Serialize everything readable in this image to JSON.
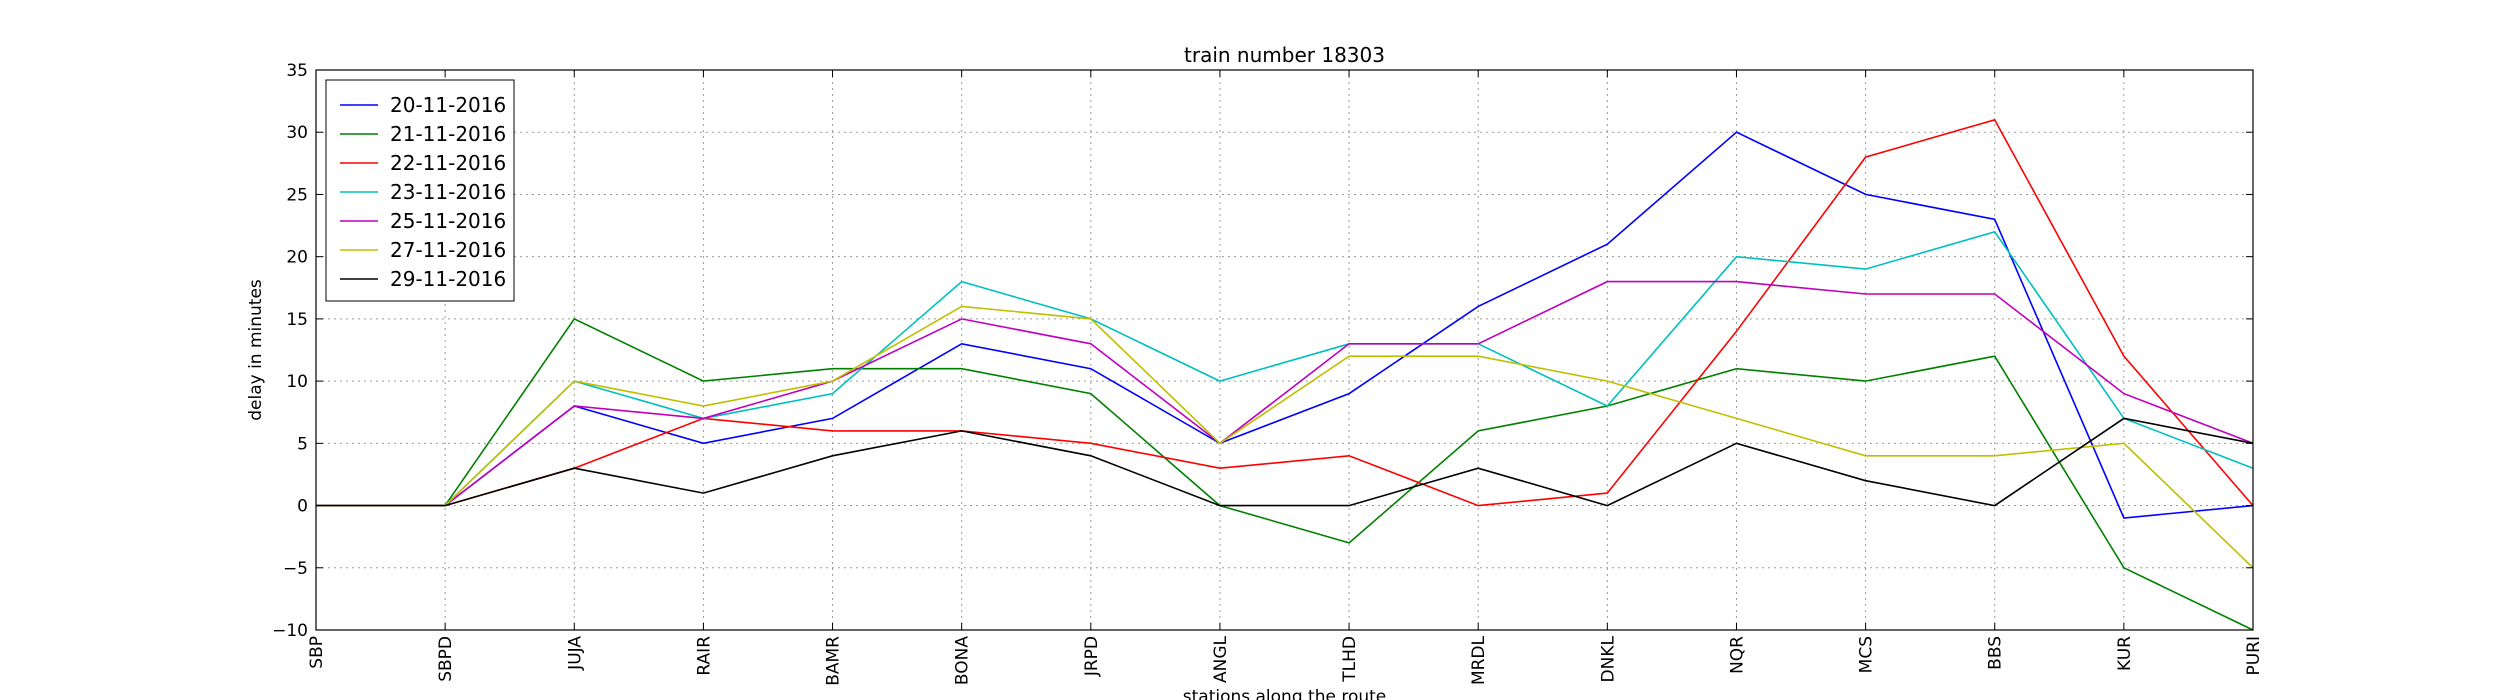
{
  "chart_data": {
    "type": "line",
    "title": "train number 18303",
    "xlabel": "stations along the route",
    "ylabel": "delay in minutes",
    "categories": [
      "SBP",
      "SBPD",
      "JUJA",
      "RAIR",
      "BAMR",
      "BONA",
      "JRPD",
      "ANGL",
      "TLHD",
      "MRDL",
      "DNKL",
      "NQR",
      "MCS",
      "BBS",
      "KUR",
      "PURI"
    ],
    "ylim": [
      -10,
      35
    ],
    "yticks": [
      -10,
      -5,
      0,
      5,
      10,
      15,
      20,
      25,
      30,
      35
    ],
    "grid": true,
    "legend_position": "top-left",
    "series": [
      {
        "name": "20-11-2016",
        "color": "#0000ff",
        "values": [
          0,
          0,
          8,
          5,
          7,
          13,
          11,
          5,
          9,
          16,
          21,
          30,
          25,
          23,
          -1,
          0
        ]
      },
      {
        "name": "21-11-2016",
        "color": "#008000",
        "values": [
          0,
          0,
          15,
          10,
          11,
          11,
          9,
          0,
          -3,
          6,
          8,
          11,
          10,
          12,
          -5,
          -10
        ]
      },
      {
        "name": "22-11-2016",
        "color": "#ff0000",
        "values": [
          0,
          0,
          3,
          7,
          6,
          6,
          5,
          3,
          4,
          0,
          1,
          14,
          28,
          31,
          12,
          0
        ]
      },
      {
        "name": "23-11-2016",
        "color": "#00bfbf",
        "values": [
          0,
          0,
          10,
          7,
          9,
          18,
          15,
          10,
          13,
          13,
          8,
          20,
          19,
          22,
          7,
          3
        ]
      },
      {
        "name": "25-11-2016",
        "color": "#bf00bf",
        "values": [
          0,
          0,
          8,
          7,
          10,
          15,
          13,
          5,
          13,
          13,
          18,
          18,
          17,
          17,
          9,
          5
        ]
      },
      {
        "name": "27-11-2016",
        "color": "#bfbf00",
        "values": [
          0,
          0,
          10,
          8,
          10,
          16,
          15,
          5,
          12,
          12,
          10,
          7,
          4,
          4,
          5,
          -5
        ]
      },
      {
        "name": "29-11-2016",
        "color": "#000000",
        "values": [
          0,
          0,
          3,
          1,
          4,
          6,
          4,
          0,
          0,
          3,
          0,
          5,
          2,
          0,
          7,
          5
        ]
      }
    ]
  }
}
